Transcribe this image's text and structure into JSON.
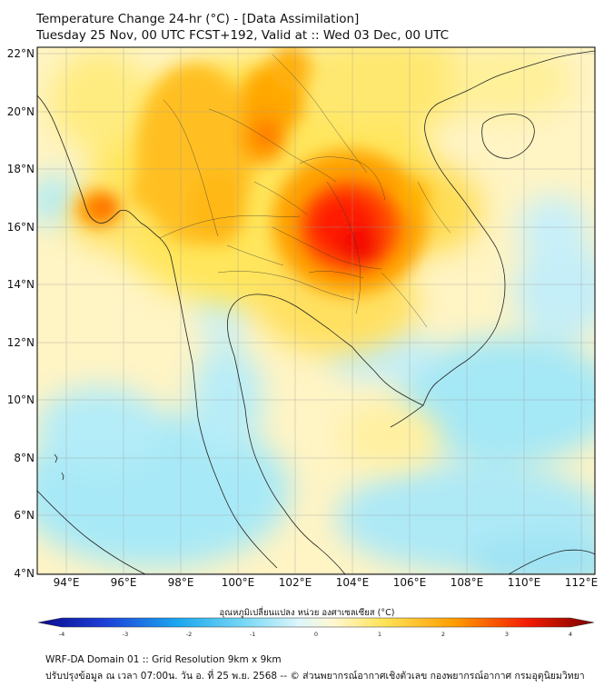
{
  "title": {
    "line1": "Temperature Change 24-hr (°C) - [Data Assimilation]",
    "line2": "Tuesday 25 Nov, 00 UTC FCST+192, Valid at :: Wed 03 Dec, 00 UTC"
  },
  "map": {
    "lon_range": [
      93,
      112.5
    ],
    "lat_range": [
      4,
      22.2
    ],
    "lon_ticks": [
      "94°E",
      "96°E",
      "98°E",
      "100°E",
      "102°E",
      "104°E",
      "106°E",
      "108°E",
      "110°E",
      "112°E"
    ],
    "lat_ticks": [
      "22°N",
      "20°N",
      "18°N",
      "16°N",
      "14°N",
      "12°N",
      "10°N",
      "8°N",
      "6°N",
      "4°N"
    ]
  },
  "colorbar": {
    "label": "อุณหภูมิเปลี่ยนแปลง หน่วย องศาเซลเซียส (°C)",
    "ticks": [
      "-4",
      "-3",
      "-2",
      "-1",
      "0",
      "1",
      "2",
      "3",
      "4"
    ],
    "range": [
      -4,
      4
    ]
  },
  "footer": {
    "line1": "WRF-DA Domain 01 :: Grid Resolution 9km x 9km",
    "line2": "ปรับปรุงข้อมูล ณ เวลา 07:00น. วัน อ. ที่ 25 พ.ย. 2568 -- © ส่วนพยากรณ์อากาศเชิงตัวเลข กองพยากรณ์อากาศ กรมอุตุนิยมวิทยา"
  },
  "colors": {
    "warm_core": "#ff1a00",
    "warm_mid": "#ff9a00",
    "warm_low": "#ffe25a",
    "neutral": "#fff6c8",
    "cool_low": "#c8f0fb",
    "cool_mid": "#99e6f6"
  }
}
